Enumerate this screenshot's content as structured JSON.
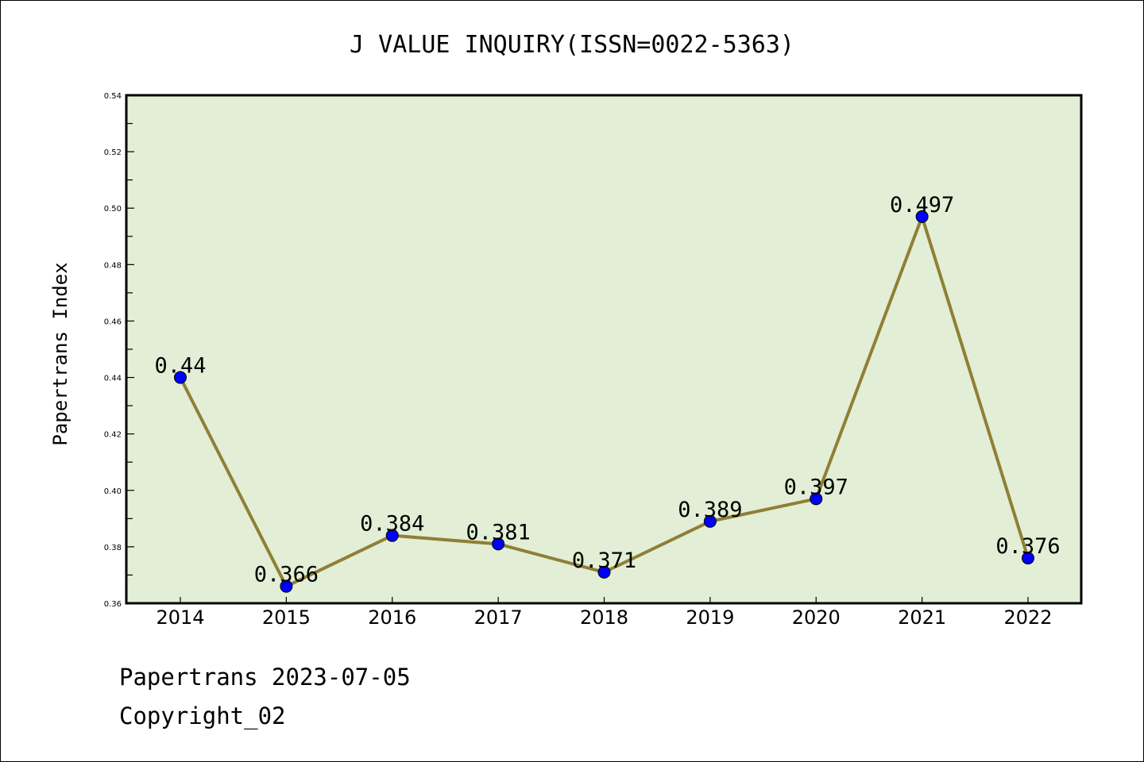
{
  "chart_data": {
    "type": "line",
    "title": "J VALUE INQUIRY(ISSN=0022-5363)",
    "xlabel": "",
    "ylabel": "Papertrans Index",
    "categories": [
      "2014",
      "2015",
      "2016",
      "2017",
      "2018",
      "2019",
      "2020",
      "2021",
      "2022"
    ],
    "series": [
      {
        "name": "Papertrans Index",
        "values": [
          0.44,
          0.366,
          0.384,
          0.381,
          0.371,
          0.389,
          0.397,
          0.497,
          0.376
        ],
        "data_labels": [
          "0.44",
          "0.366",
          "0.384",
          "0.381",
          "0.371",
          "0.389",
          "0.397",
          "0.497",
          "0.376"
        ],
        "line_color": "#8f7f36",
        "marker_color": "#0000ff"
      }
    ],
    "ylim": [
      0.36,
      0.54
    ],
    "yticks": [
      "0.36",
      "0.38",
      "0.40",
      "0.42",
      "0.44",
      "0.46",
      "0.48",
      "0.50",
      "0.52",
      "0.54"
    ],
    "grid": false,
    "legend": "none",
    "plot_background": "#e2efd6"
  },
  "footer": {
    "line1": "Papertrans 2023-07-05",
    "line2": "Copyright_02"
  }
}
